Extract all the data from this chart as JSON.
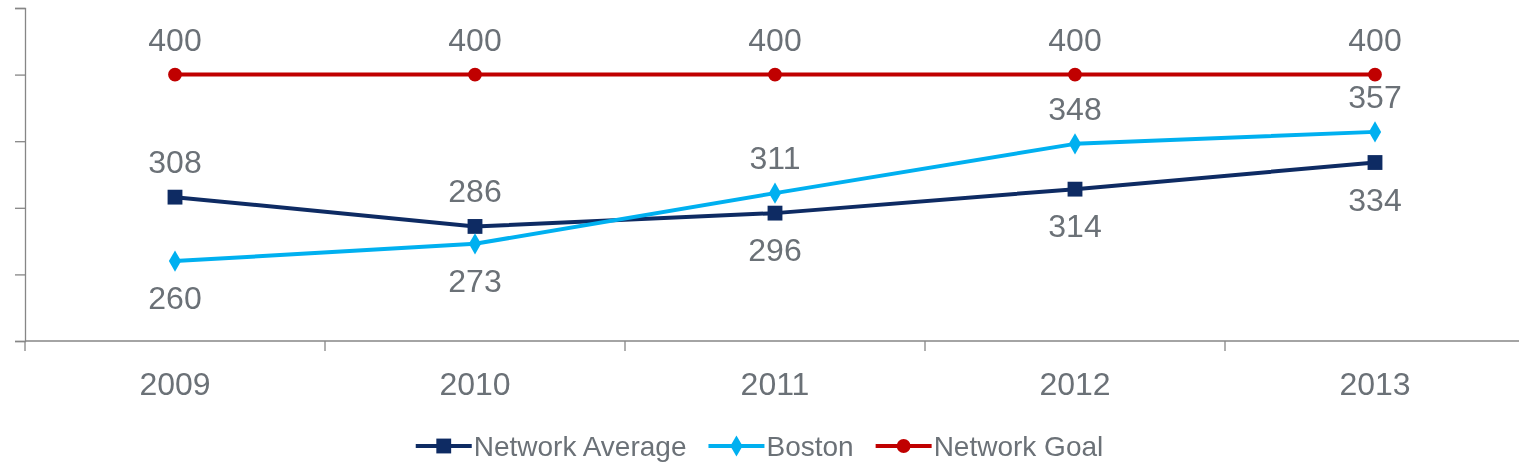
{
  "chart_data": {
    "type": "line",
    "categories": [
      "2009",
      "2010",
      "2011",
      "2012",
      "2013"
    ],
    "series": [
      {
        "name": "Network Average",
        "color": "#0e2b63",
        "marker": "square",
        "values": [
          308,
          286,
          296,
          314,
          334
        ]
      },
      {
        "name": "Boston",
        "color": "#00b0f0",
        "marker": "diamond",
        "values": [
          260,
          273,
          311,
          348,
          357
        ]
      },
      {
        "name": "Network Goal",
        "color": "#c00000",
        "marker": "circle",
        "values": [
          400,
          400,
          400,
          400,
          400
        ]
      }
    ],
    "ylim": [
      200,
      450
    ],
    "yticks": [
      {
        "value": 200,
        "label": null
      },
      {
        "value": 250,
        "label": null
      },
      {
        "value": 300,
        "label": null
      },
      {
        "value": 350,
        "label": null
      },
      {
        "value": 400,
        "label": null
      },
      {
        "value": 450,
        "label": null
      }
    ],
    "tick_labels": "x",
    "data_labels": true,
    "grid": false,
    "legend": "bottom",
    "line_style": "solid"
  }
}
